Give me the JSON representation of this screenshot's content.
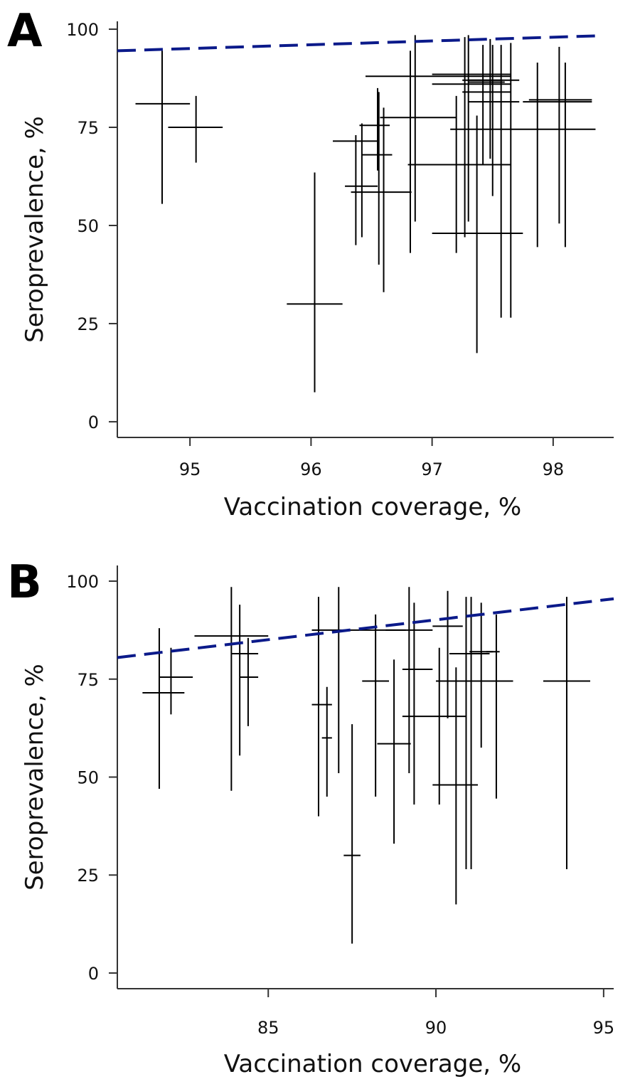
{
  "chart_data": [
    {
      "panel": "A",
      "type": "scatter",
      "xlabel": "Vaccination coverage, %",
      "ylabel": "Seroprevalence, %",
      "xlim": [
        94.4,
        98.5
      ],
      "ylim": [
        -4,
        102
      ],
      "xticks": [
        95,
        96,
        97,
        98
      ],
      "yticks": [
        0,
        25,
        50,
        75,
        100
      ],
      "reference_line": {
        "style": "dashed",
        "color": "#0b1a8a",
        "x": [
          94.4,
          98.35
        ],
        "y": [
          94.5,
          98.3
        ]
      },
      "points": [
        {
          "x": 94.77,
          "x_lo": 94.55,
          "x_hi": 95.0,
          "y": 81.0,
          "y_lo": 55.5,
          "y_hi": 94.5
        },
        {
          "x": 95.05,
          "x_lo": 94.82,
          "x_hi": 95.27,
          "y": 75.0,
          "y_lo": 66.0,
          "y_hi": 83.0
        },
        {
          "x": 96.03,
          "x_lo": 95.8,
          "x_hi": 96.26,
          "y": 30.0,
          "y_lo": 7.5,
          "y_hi": 63.5
        },
        {
          "x": 96.37,
          "x_lo": 96.18,
          "x_hi": 96.55,
          "y": 71.5,
          "y_lo": 45.0,
          "y_hi": 73.0
        },
        {
          "x": 96.42,
          "x_lo": 96.28,
          "x_hi": 96.55,
          "y": 60.0,
          "y_lo": 47.0,
          "y_hi": 76.0
        },
        {
          "x": 96.55,
          "x_lo": 96.4,
          "x_hi": 96.65,
          "y": 75.5,
          "y_lo": 64.0,
          "y_hi": 85.0
        },
        {
          "x": 96.56,
          "x_lo": 96.42,
          "x_hi": 96.67,
          "y": 68.0,
          "y_lo": 40.0,
          "y_hi": 84.0
        },
        {
          "x": 96.6,
          "x_lo": 96.33,
          "x_hi": 96.83,
          "y": 58.5,
          "y_lo": 33.0,
          "y_hi": 80.0
        },
        {
          "x": 96.82,
          "x_lo": 96.57,
          "x_hi": 97.2,
          "y": 77.5,
          "y_lo": 43.0,
          "y_hi": 94.5
        },
        {
          "x": 96.86,
          "x_lo": 96.45,
          "x_hi": 97.65,
          "y": 88.0,
          "y_lo": 51.0,
          "y_hi": 98.5
        },
        {
          "x": 97.2,
          "x_lo": 96.8,
          "x_hi": 97.65,
          "y": 65.5,
          "y_lo": 43.0,
          "y_hi": 83.0
        },
        {
          "x": 97.27,
          "x_lo": 97.0,
          "x_hi": 97.65,
          "y": 86.0,
          "y_lo": 47.0,
          "y_hi": 98.0
        },
        {
          "x": 97.3,
          "x_lo": 97.0,
          "x_hi": 97.65,
          "y": 88.5,
          "y_lo": 51.0,
          "y_hi": 98.5
        },
        {
          "x": 97.37,
          "x_lo": 97.0,
          "x_hi": 97.75,
          "y": 48.0,
          "y_lo": 17.5,
          "y_hi": 78.0
        },
        {
          "x": 97.42,
          "x_lo": 97.25,
          "x_hi": 97.58,
          "y": 87.0,
          "y_lo": 65.5,
          "y_hi": 96.0
        },
        {
          "x": 97.48,
          "x_lo": 97.3,
          "x_hi": 97.6,
          "y": 86.5,
          "y_lo": 67.0,
          "y_hi": 97.5
        },
        {
          "x": 97.5,
          "x_lo": 97.25,
          "x_hi": 97.65,
          "y": 84.0,
          "y_lo": 57.5,
          "y_hi": 96.0
        },
        {
          "x": 97.57,
          "x_lo": 97.3,
          "x_hi": 97.72,
          "y": 87.0,
          "y_lo": 26.5,
          "y_hi": 96.0
        },
        {
          "x": 97.65,
          "x_lo": 97.3,
          "x_hi": 97.72,
          "y": 81.5,
          "y_lo": 26.5,
          "y_hi": 96.5
        },
        {
          "x": 97.87,
          "x_lo": 97.15,
          "x_hi": 98.35,
          "y": 74.5,
          "y_lo": 44.5,
          "y_hi": 91.5
        },
        {
          "x": 98.05,
          "x_lo": 97.75,
          "x_hi": 98.32,
          "y": 81.5,
          "y_lo": 50.5,
          "y_hi": 95.5
        },
        {
          "x": 98.1,
          "x_lo": 97.8,
          "x_hi": 98.32,
          "y": 82.0,
          "y_lo": 44.5,
          "y_hi": 91.5
        }
      ]
    },
    {
      "panel": "B",
      "type": "scatter",
      "xlabel": "Vaccination coverage, %",
      "ylabel": "Seroprevalence, %",
      "xlim": [
        80.5,
        95.3
      ],
      "ylim": [
        -4,
        104
      ],
      "xticks": [
        85,
        90,
        95
      ],
      "yticks": [
        0,
        25,
        50,
        75,
        100
      ],
      "reference_line": {
        "style": "dashed",
        "color": "#0b1a8a",
        "x": [
          80.5,
          95.3
        ],
        "y": [
          80.5,
          95.5
        ]
      },
      "points": [
        {
          "x": 81.75,
          "x_lo": 81.25,
          "x_hi": 82.5,
          "y": 71.5,
          "y_lo": 47.0,
          "y_hi": 88.0
        },
        {
          "x": 82.1,
          "x_lo": 81.75,
          "x_hi": 82.75,
          "y": 75.5,
          "y_lo": 66.0,
          "y_hi": 83.0
        },
        {
          "x": 83.9,
          "x_lo": 82.8,
          "x_hi": 85.0,
          "y": 86.0,
          "y_lo": 46.5,
          "y_hi": 98.5
        },
        {
          "x": 84.15,
          "x_lo": 83.9,
          "x_hi": 84.7,
          "y": 81.5,
          "y_lo": 55.5,
          "y_hi": 94.0
        },
        {
          "x": 84.4,
          "x_lo": 84.15,
          "x_hi": 84.7,
          "y": 75.5,
          "y_lo": 63.0,
          "y_hi": 85.5
        },
        {
          "x": 86.5,
          "x_lo": 86.3,
          "x_hi": 86.9,
          "y": 68.5,
          "y_lo": 40.0,
          "y_hi": 96.0
        },
        {
          "x": 86.75,
          "x_lo": 86.6,
          "x_hi": 86.9,
          "y": 60.0,
          "y_lo": 45.0,
          "y_hi": 73.0
        },
        {
          "x": 87.1,
          "x_lo": 86.3,
          "x_hi": 89.1,
          "y": 87.5,
          "y_lo": 51.0,
          "y_hi": 98.5
        },
        {
          "x": 87.5,
          "x_lo": 87.25,
          "x_hi": 87.75,
          "y": 30.0,
          "y_lo": 7.5,
          "y_hi": 63.5
        },
        {
          "x": 88.2,
          "x_lo": 87.8,
          "x_hi": 88.6,
          "y": 74.5,
          "y_lo": 45.0,
          "y_hi": 91.5
        },
        {
          "x": 88.75,
          "x_lo": 88.25,
          "x_hi": 89.25,
          "y": 58.5,
          "y_lo": 33.0,
          "y_hi": 80.0
        },
        {
          "x": 89.2,
          "x_lo": 88.5,
          "x_hi": 89.9,
          "y": 87.5,
          "y_lo": 51.0,
          "y_hi": 98.5
        },
        {
          "x": 89.35,
          "x_lo": 89.0,
          "x_hi": 89.9,
          "y": 77.5,
          "y_lo": 43.0,
          "y_hi": 94.5
        },
        {
          "x": 90.1,
          "x_lo": 89.0,
          "x_hi": 90.9,
          "y": 65.5,
          "y_lo": 43.0,
          "y_hi": 83.0
        },
        {
          "x": 90.35,
          "x_lo": 89.9,
          "x_hi": 90.8,
          "y": 88.5,
          "y_lo": 65.0,
          "y_hi": 97.5
        },
        {
          "x": 90.6,
          "x_lo": 89.9,
          "x_hi": 91.25,
          "y": 48.0,
          "y_lo": 17.5,
          "y_hi": 78.0
        },
        {
          "x": 90.9,
          "x_lo": 90.4,
          "x_hi": 91.6,
          "y": 81.5,
          "y_lo": 26.5,
          "y_hi": 96.0
        },
        {
          "x": 91.05,
          "x_lo": 90.0,
          "x_hi": 92.3,
          "y": 74.5,
          "y_lo": 26.5,
          "y_hi": 96.0
        },
        {
          "x": 91.35,
          "x_lo": 91.0,
          "x_hi": 91.7,
          "y": 82.0,
          "y_lo": 57.5,
          "y_hi": 94.5
        },
        {
          "x": 91.8,
          "x_lo": 91.5,
          "x_hi": 91.9,
          "y": 82.0,
          "y_lo": 44.5,
          "y_hi": 91.5
        },
        {
          "x": 93.9,
          "x_lo": 93.2,
          "x_hi": 94.6,
          "y": 74.5,
          "y_lo": 26.5,
          "y_hi": 96.0
        }
      ]
    }
  ]
}
